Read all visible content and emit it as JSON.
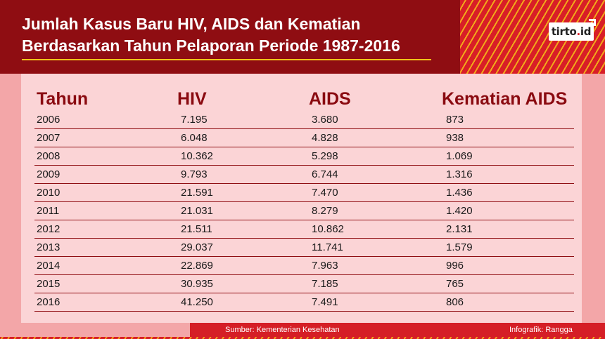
{
  "header": {
    "title_line1": "Jumlah Kasus Baru HIV, AIDS dan Kematian",
    "title_line2": "Berdasarkan Tahun Pelaporan Periode 1987-2016",
    "logo": "tirto.id"
  },
  "table": {
    "columns": [
      "Tahun",
      "HIV",
      "AIDS",
      "Kematian AIDS"
    ],
    "rows": [
      [
        "2006",
        "7.195",
        "3.680",
        "873"
      ],
      [
        "2007",
        "6.048",
        "4.828",
        "938"
      ],
      [
        "2008",
        "10.362",
        "5.298",
        "1.069"
      ],
      [
        "2009",
        "9.793",
        "6.744",
        "1.316"
      ],
      [
        "2010",
        "21.591",
        "7.470",
        "1.436"
      ],
      [
        "2011",
        "21.031",
        "8.279",
        "1.420"
      ],
      [
        "2012",
        "21.511",
        "10.862",
        "2.131"
      ],
      [
        "2013",
        "29.037",
        "11.741",
        "1.579"
      ],
      [
        "2014",
        "22.869",
        "7.963",
        "996"
      ],
      [
        "2015",
        "30.935",
        "7.185",
        "765"
      ],
      [
        "2016",
        "41.250",
        "7.491",
        "806"
      ]
    ]
  },
  "footer": {
    "source": "Sumber: Kementerian Kesehatan",
    "credit": "Infografik: Rangga"
  },
  "colors": {
    "header_bg": "#8f0d12",
    "accent_red": "#d81e27",
    "accent_yellow": "#f2a81a",
    "panel_pink": "#fbd4d6",
    "band_pink": "#f3a6a8",
    "heading_text": "#8a0a10"
  }
}
